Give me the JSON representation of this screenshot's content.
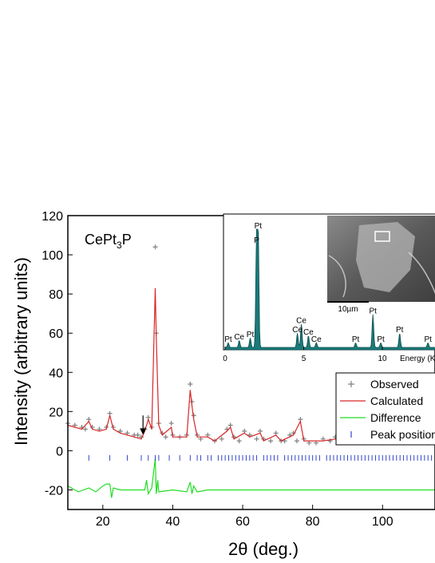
{
  "chart_data": {
    "type": "line",
    "title": "",
    "compound": {
      "base": "CePt",
      "sub": "3",
      "tail": "P"
    },
    "xlabel": "2θ (deg.)",
    "ylabel": "Intensity (arbitrary units)",
    "xlim": [
      10,
      115
    ],
    "ylim": [
      -30,
      120
    ],
    "xticks": [
      20,
      40,
      60,
      80,
      100
    ],
    "yticks": [
      -20,
      0,
      20,
      40,
      60,
      80,
      100,
      120
    ],
    "legend_position": "bottom-right",
    "series": [
      {
        "name": "Observed",
        "style": "plus",
        "color": "#7f7f7f",
        "points": [
          [
            10,
            14
          ],
          [
            12,
            13
          ],
          [
            14,
            12
          ],
          [
            15,
            11
          ],
          [
            16,
            16
          ],
          [
            17,
            12
          ],
          [
            19,
            11
          ],
          [
            21,
            12
          ],
          [
            22,
            19
          ],
          [
            23,
            12
          ],
          [
            25,
            10
          ],
          [
            27,
            9
          ],
          [
            29,
            8
          ],
          [
            30,
            8
          ],
          [
            31,
            7
          ],
          [
            32,
            11
          ],
          [
            33,
            17
          ],
          [
            34,
            12
          ],
          [
            35,
            104
          ],
          [
            35.3,
            60
          ],
          [
            36,
            14
          ],
          [
            37,
            9
          ],
          [
            38,
            7
          ],
          [
            39.6,
            14
          ],
          [
            40,
            8
          ],
          [
            42,
            7
          ],
          [
            44,
            8
          ],
          [
            45,
            34
          ],
          [
            45.5,
            25
          ],
          [
            46,
            18
          ],
          [
            47,
            8
          ],
          [
            48,
            6
          ],
          [
            50,
            8
          ],
          [
            52,
            5
          ],
          [
            54,
            6
          ],
          [
            55.5,
            11
          ],
          [
            56.5,
            13
          ],
          [
            57.5,
            7
          ],
          [
            59,
            5
          ],
          [
            60.5,
            10
          ],
          [
            62,
            8
          ],
          [
            64,
            6
          ],
          [
            65,
            10
          ],
          [
            66,
            6
          ],
          [
            68,
            5
          ],
          [
            69.5,
            9
          ],
          [
            71,
            5
          ],
          [
            72,
            5
          ],
          [
            73.5,
            8
          ],
          [
            74.5,
            9
          ],
          [
            75.5,
            5
          ],
          [
            76.5,
            16
          ],
          [
            77.5,
            6
          ],
          [
            79,
            4
          ],
          [
            81,
            4
          ],
          [
            83,
            6
          ],
          [
            85,
            5
          ],
          [
            86.5,
            7
          ],
          [
            88,
            4
          ],
          [
            90,
            5
          ],
          [
            92,
            6
          ],
          [
            93,
            5
          ],
          [
            95,
            4
          ],
          [
            97,
            5
          ],
          [
            98,
            6
          ],
          [
            100,
            4
          ],
          [
            103,
            5
          ],
          [
            106,
            4
          ],
          [
            110,
            5
          ],
          [
            113,
            4
          ],
          [
            115,
            4
          ]
        ]
      },
      {
        "name": "Calculated",
        "style": "line",
        "color": "#d62728",
        "points": [
          [
            10,
            13
          ],
          [
            14,
            11
          ],
          [
            16,
            15
          ],
          [
            17,
            11
          ],
          [
            19,
            10
          ],
          [
            21,
            11
          ],
          [
            22,
            18
          ],
          [
            23,
            11
          ],
          [
            25,
            9
          ],
          [
            29,
            7
          ],
          [
            31,
            6
          ],
          [
            32,
            10
          ],
          [
            33,
            16
          ],
          [
            34,
            11
          ],
          [
            35,
            83
          ],
          [
            35.3,
            58
          ],
          [
            36,
            13
          ],
          [
            37,
            8
          ],
          [
            39.6,
            12
          ],
          [
            40,
            7
          ],
          [
            44,
            7
          ],
          [
            45,
            31
          ],
          [
            45.5,
            23
          ],
          [
            46,
            16
          ],
          [
            47,
            7
          ],
          [
            50,
            7
          ],
          [
            52,
            5
          ],
          [
            55.5,
            10
          ],
          [
            56.5,
            12
          ],
          [
            57.5,
            6
          ],
          [
            60.5,
            9
          ],
          [
            62,
            7
          ],
          [
            65,
            9
          ],
          [
            66,
            5
          ],
          [
            69.5,
            8
          ],
          [
            71,
            5
          ],
          [
            74.5,
            8
          ],
          [
            76.5,
            15
          ],
          [
            77.5,
            5
          ],
          [
            83,
            5
          ],
          [
            86.5,
            6
          ],
          [
            92,
            5
          ],
          [
            98,
            5
          ],
          [
            103,
            4
          ],
          [
            110,
            4
          ],
          [
            115,
            4
          ]
        ]
      },
      {
        "name": "Difference",
        "style": "line",
        "color": "#22dd22",
        "points": [
          [
            10,
            -18
          ],
          [
            13,
            -21
          ],
          [
            16,
            -19
          ],
          [
            18,
            -21
          ],
          [
            20,
            -18
          ],
          [
            21,
            -17
          ],
          [
            22,
            -17
          ],
          [
            22.5,
            -24
          ],
          [
            23,
            -19
          ],
          [
            25,
            -20
          ],
          [
            30,
            -20
          ],
          [
            32,
            -20
          ],
          [
            32.5,
            -15
          ],
          [
            33,
            -22
          ],
          [
            34,
            -19
          ],
          [
            35,
            -4
          ],
          [
            35.3,
            -22
          ],
          [
            35.7,
            -15
          ],
          [
            36,
            -21
          ],
          [
            40,
            -20
          ],
          [
            44,
            -21
          ],
          [
            45,
            -16
          ],
          [
            45.5,
            -22
          ],
          [
            46,
            -18
          ],
          [
            47,
            -21
          ],
          [
            50,
            -20
          ],
          [
            60,
            -20
          ],
          [
            70,
            -20
          ],
          [
            80,
            -20
          ],
          [
            90,
            -20
          ],
          [
            100,
            -20
          ],
          [
            110,
            -20
          ],
          [
            115,
            -20
          ]
        ]
      },
      {
        "name": "Peak position",
        "style": "tick",
        "color": "#3344cc",
        "y": -1,
        "positions": [
          16,
          22,
          27,
          31,
          33,
          35,
          36,
          39,
          42,
          45,
          47,
          48,
          50,
          51,
          53,
          54,
          55,
          56,
          57,
          58,
          59,
          60,
          61,
          62,
          63,
          64,
          66,
          67,
          68,
          69,
          70,
          72,
          73,
          74,
          75,
          76,
          77,
          78,
          79,
          80,
          81,
          82,
          84,
          85,
          86,
          87,
          88,
          89,
          90,
          91,
          92,
          93,
          94,
          95,
          96,
          97,
          98,
          99,
          100,
          101,
          102,
          103,
          104,
          105,
          106,
          107,
          108,
          109,
          110,
          111,
          112,
          113,
          114
        ]
      }
    ],
    "annotations": [
      {
        "type": "arrow",
        "x": 31.5,
        "from_y": 18,
        "to_y": 9
      }
    ],
    "inset_eds": {
      "xlabel": "Energy (K",
      "xticks": [
        0,
        5,
        10
      ],
      "xlim": [
        0,
        13.5
      ],
      "peaks": [
        {
          "label": "Pt",
          "energy": 0.2,
          "height": 0.04
        },
        {
          "label": "Ce",
          "energy": 0.9,
          "height": 0.06
        },
        {
          "label": "Pt",
          "energy": 1.6,
          "height": 0.08
        },
        {
          "label": "P",
          "energy": 2.0,
          "height": 0.88
        },
        {
          "label": "Pt",
          "energy": 2.1,
          "height": 1.0
        },
        {
          "label": "Ce",
          "energy": 4.6,
          "height": 0.12
        },
        {
          "label": "Ce",
          "energy": 4.85,
          "height": 0.2
        },
        {
          "label": "Ce",
          "energy": 5.3,
          "height": 0.1
        },
        {
          "label": "Ce",
          "energy": 5.8,
          "height": 0.04
        },
        {
          "label": "Pt",
          "energy": 8.3,
          "height": 0.04
        },
        {
          "label": "Pt",
          "energy": 9.4,
          "height": 0.28
        },
        {
          "label": "Pt",
          "energy": 9.9,
          "height": 0.04
        },
        {
          "label": "Pt",
          "energy": 11.1,
          "height": 0.12
        },
        {
          "label": "Pt",
          "energy": 12.9,
          "height": 0.04
        }
      ]
    },
    "inset_sem": {
      "scale_label": "10µm"
    }
  }
}
